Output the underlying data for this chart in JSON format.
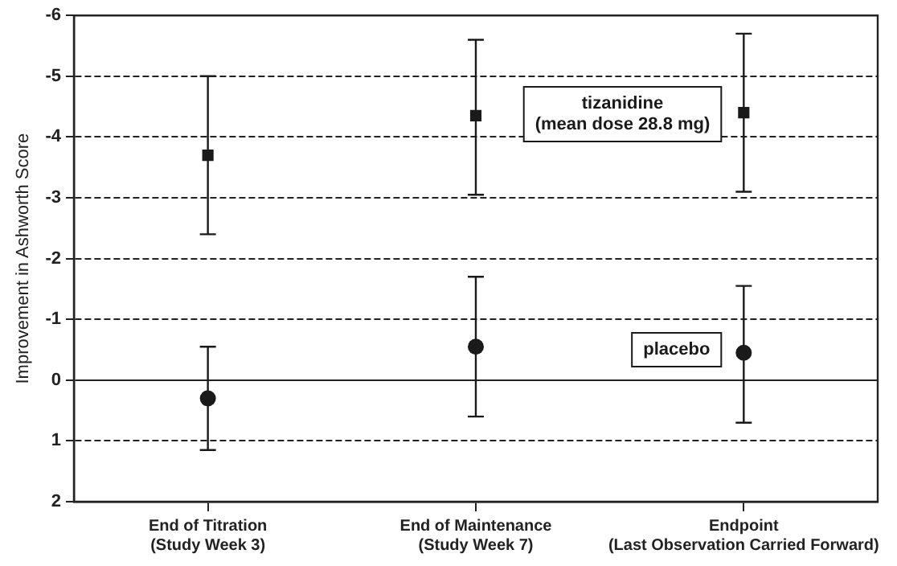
{
  "chart_data": {
    "type": "scatter",
    "ylabel": "Improvement in Ashworth Score",
    "categories": [
      "End of Titration\n(Study Week 3)",
      "End of Maintenance\n(Study Week 7)",
      "Endpoint\n(Last Observation Carried Forward)"
    ],
    "series": [
      {
        "name": "tizanidine\n(mean dose 28.8 mg)",
        "color": "#1a1a1a",
        "marker": "square",
        "values": [
          -3.7,
          -4.35,
          -4.4
        ],
        "errors": [
          [
            -2.4,
            -5.0
          ],
          [
            -3.05,
            -5.6
          ],
          [
            -3.1,
            -5.7
          ]
        ]
      },
      {
        "name": "placebo",
        "color": "#1a1a1a",
        "marker": "circle",
        "values": [
          0.3,
          -0.55,
          -0.45
        ],
        "errors": [
          [
            1.15,
            -0.55
          ],
          [
            0.6,
            -1.7
          ],
          [
            0.7,
            -1.55
          ]
        ]
      }
    ],
    "ylim": [
      2,
      -6
    ],
    "yticks": [
      -6,
      -5,
      -4,
      -3,
      -2,
      -1,
      0,
      1,
      2
    ],
    "grid": "y",
    "legend": false
  }
}
